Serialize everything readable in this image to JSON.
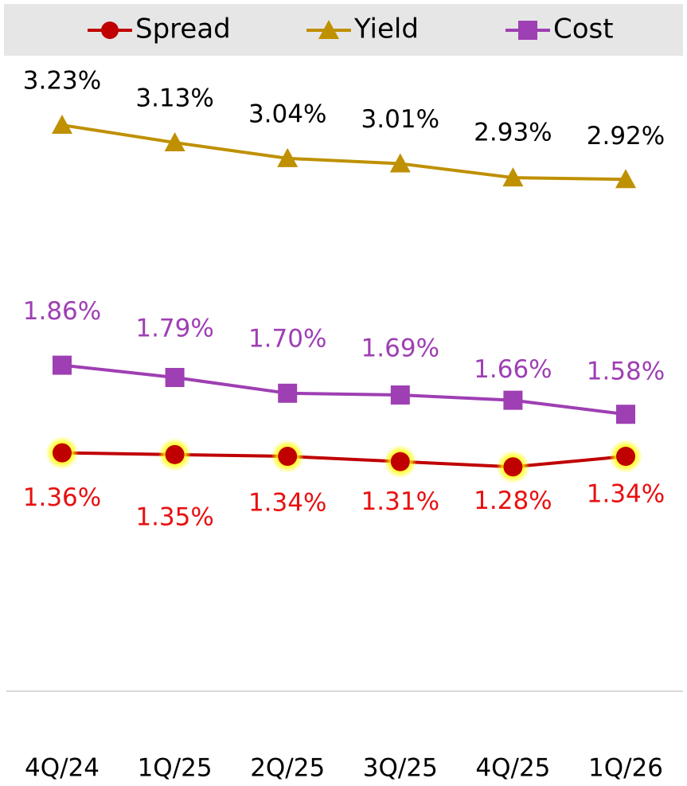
{
  "chart_data": {
    "type": "line",
    "categories": [
      "4Q/24",
      "1Q/25",
      "2Q/25",
      "3Q/25",
      "4Q/25",
      "1Q/26"
    ],
    "ylim": [
      0,
      3.6
    ],
    "legend": "top",
    "series": [
      {
        "name": "Spread",
        "color": "#c00000",
        "label_color": "#e81010",
        "marker": "circle",
        "values": [
          1.36,
          1.35,
          1.34,
          1.31,
          1.28,
          1.34
        ],
        "value_labels": [
          "1.36%",
          "1.35%",
          "1.34%",
          "1.31%",
          "1.28%",
          "1.34%"
        ]
      },
      {
        "name": "Yield",
        "color": "#bf9000",
        "label_color": "#000000",
        "marker": "triangle",
        "values": [
          3.23,
          3.13,
          3.04,
          3.01,
          2.93,
          2.92
        ],
        "value_labels": [
          "3.23%",
          "3.13%",
          "3.04%",
          "3.01%",
          "2.93%",
          "2.92%"
        ]
      },
      {
        "name": "Cost",
        "color": "#9e3fb3",
        "label_color": "#9e3fb3",
        "marker": "square",
        "values": [
          1.86,
          1.79,
          1.7,
          1.69,
          1.66,
          1.58
        ],
        "value_labels": [
          "1.86%",
          "1.79%",
          "1.70%",
          "1.69%",
          "1.66%",
          "1.58%"
        ]
      }
    ]
  }
}
